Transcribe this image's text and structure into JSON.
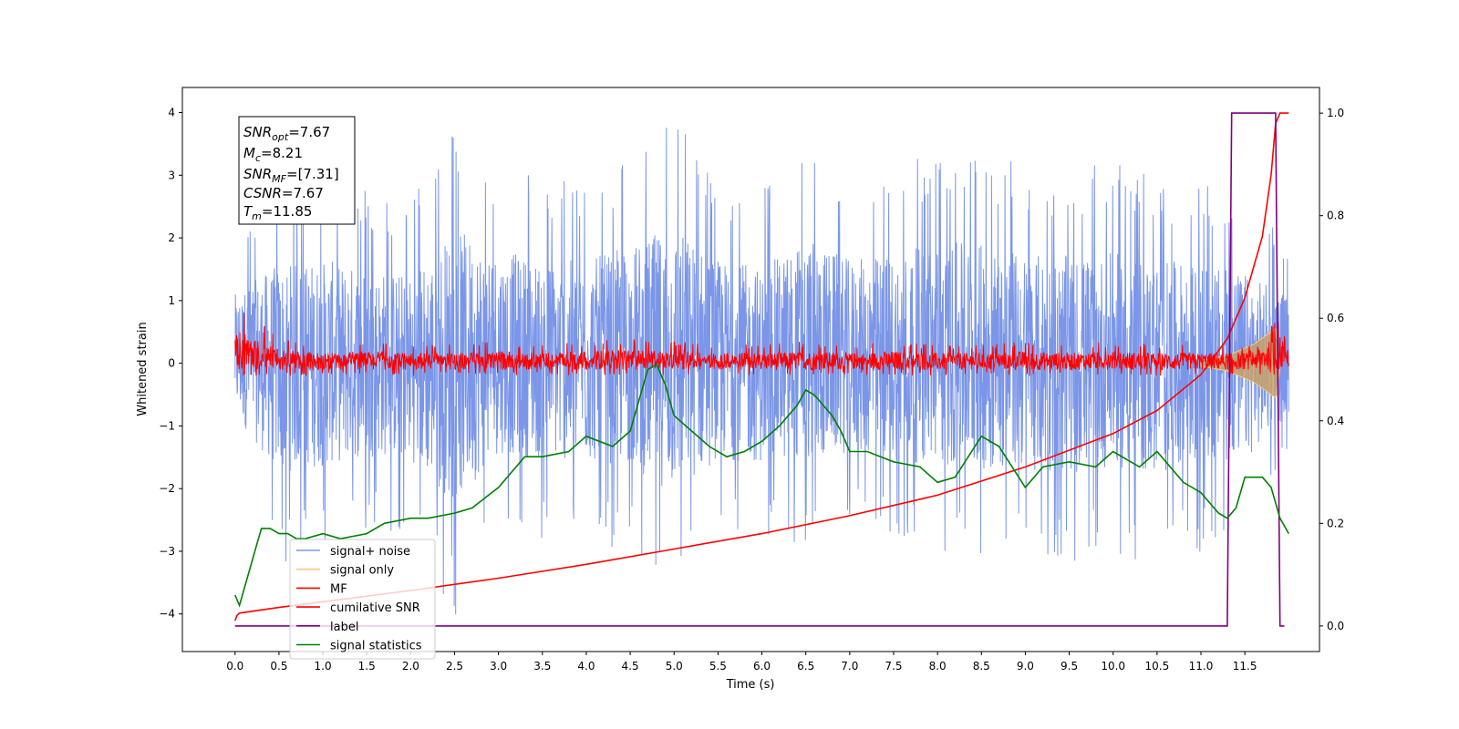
{
  "chart_data": {
    "type": "line",
    "xlabel": "Time (s)",
    "ylabel": "Whitened strain",
    "xlim": [
      -0.6,
      12.35
    ],
    "ylim": [
      -4.6,
      4.4
    ],
    "y2lim": [
      -0.05,
      1.05
    ],
    "grid": false,
    "x_ticks": [
      "0.0",
      "0.5",
      "1.0",
      "1.5",
      "2.0",
      "2.5",
      "3.0",
      "3.5",
      "4.0",
      "4.5",
      "5.0",
      "5.5",
      "6.0",
      "6.5",
      "7.0",
      "7.5",
      "8.0",
      "8.5",
      "9.0",
      "9.5",
      "10.0",
      "10.5",
      "11.0",
      "11.5"
    ],
    "y_ticks": [
      "−4",
      "−3",
      "−2",
      "−1",
      "0",
      "1",
      "2",
      "3",
      "4"
    ],
    "y2_ticks": [
      "0.0",
      "0.2",
      "0.4",
      "0.6",
      "0.8",
      "1.0"
    ],
    "legend_position": "lower-left",
    "annotation": {
      "snr_opt": {
        "label": "SNR",
        "sub": "opt",
        "value": "=7.67"
      },
      "mc": {
        "label": "M",
        "sub": "c",
        "value": "=8.21"
      },
      "snr_mf": {
        "label": "SNR",
        "sub": "MF",
        "value": "=[7.31]"
      },
      "csnr": {
        "label": "CSNR",
        "value": "=7.67"
      },
      "tm": {
        "label": "T",
        "sub": "m",
        "value": "=11.85"
      }
    },
    "series": [
      {
        "name": "signal+ noise",
        "color": "#7b96e8",
        "axis": "left",
        "style": "noise band",
        "envelope_x": [
          0.0,
          0.5,
          1.0,
          1.5,
          2.0,
          2.5,
          3.0,
          3.5,
          4.0,
          4.5,
          5.0,
          5.5,
          6.0,
          6.5,
          7.0,
          7.5,
          8.0,
          8.5,
          9.0,
          9.5,
          10.0,
          10.5,
          11.0,
          11.5,
          12.0
        ],
        "envelope_upper": [
          2.0,
          2.9,
          3.0,
          2.8,
          2.6,
          3.9,
          3.3,
          3.0,
          3.0,
          3.4,
          4.0,
          3.0,
          2.8,
          3.6,
          3.0,
          3.2,
          3.5,
          3.5,
          3.2,
          3.1,
          3.2,
          3.0,
          2.9,
          2.6,
          2.0
        ],
        "envelope_lower": [
          -1.5,
          -3.2,
          -3.0,
          -2.7,
          -2.8,
          -4.1,
          -2.6,
          -2.8,
          -2.9,
          -3.0,
          -3.8,
          -2.8,
          -2.9,
          -2.9,
          -2.6,
          -2.8,
          -3.0,
          -3.1,
          -3.1,
          -3.2,
          -3.0,
          -3.3,
          -3.0,
          -2.8,
          -1.5
        ]
      },
      {
        "name": "signal only",
        "color": "#f9c87a",
        "axis": "left",
        "style": "chirp envelope",
        "x": [
          11.0,
          11.3,
          11.6,
          11.75,
          11.85,
          11.9
        ],
        "upper": [
          0.05,
          0.12,
          0.3,
          0.45,
          0.55,
          0.1
        ],
        "lower": [
          -0.05,
          -0.12,
          -0.3,
          -0.45,
          -0.55,
          -0.1
        ]
      },
      {
        "name": "MF",
        "color": "#ff0000",
        "axis": "left",
        "style": "noise band",
        "envelope_x": [
          0.0,
          0.5,
          1.0,
          1.5,
          2.0,
          2.5,
          3.0,
          3.5,
          4.0,
          4.5,
          5.0,
          5.5,
          6.0,
          6.5,
          7.0,
          7.5,
          8.0,
          8.5,
          9.0,
          9.5,
          10.0,
          10.5,
          11.0,
          11.5,
          12.0
        ],
        "envelope_upper": [
          1.0,
          0.4,
          0.3,
          0.35,
          0.3,
          0.3,
          0.35,
          0.3,
          0.35,
          0.4,
          0.35,
          0.3,
          0.3,
          0.35,
          0.3,
          0.35,
          0.3,
          0.3,
          0.35,
          0.3,
          0.35,
          0.3,
          0.3,
          0.3,
          0.9
        ],
        "envelope_lower": [
          -0.2,
          -0.2,
          -0.2,
          -0.18,
          -0.2,
          -0.18,
          -0.2,
          -0.18,
          -0.2,
          -0.18,
          -0.2,
          -0.18,
          -0.2,
          -0.2,
          -0.18,
          -0.2,
          -0.2,
          -0.18,
          -0.2,
          -0.2,
          -0.18,
          -0.2,
          -0.2,
          -0.18,
          -0.2
        ]
      },
      {
        "name": "cumilative SNR",
        "color": "#ff0000",
        "axis": "right",
        "x": [
          0.0,
          0.02,
          0.05,
          0.5,
          1.0,
          2.0,
          3.0,
          4.0,
          5.0,
          6.0,
          7.0,
          8.0,
          9.0,
          10.0,
          10.5,
          11.0,
          11.3,
          11.5,
          11.7,
          11.8,
          11.85,
          11.9,
          12.0
        ],
        "y": [
          0.01,
          0.02,
          0.025,
          0.036,
          0.047,
          0.069,
          0.093,
          0.12,
          0.15,
          0.18,
          0.215,
          0.255,
          0.31,
          0.375,
          0.42,
          0.49,
          0.56,
          0.64,
          0.76,
          0.88,
          0.98,
          1.0,
          1.0
        ]
      },
      {
        "name": "label",
        "color": "#800080",
        "axis": "right",
        "x": [
          0.0,
          11.3,
          11.35,
          11.85,
          11.9,
          11.95
        ],
        "y": [
          0.0,
          0.0,
          1.0,
          1.0,
          0.0,
          0.0
        ]
      },
      {
        "name": "signal statistics",
        "color": "#008000",
        "axis": "right",
        "x": [
          0.0,
          0.05,
          0.15,
          0.25,
          0.3,
          0.4,
          0.5,
          0.6,
          0.7,
          0.8,
          1.0,
          1.2,
          1.5,
          1.7,
          2.0,
          2.2,
          2.5,
          2.7,
          3.0,
          3.3,
          3.5,
          3.8,
          4.0,
          4.3,
          4.5,
          4.6,
          4.7,
          4.8,
          4.9,
          5.0,
          5.2,
          5.4,
          5.6,
          5.8,
          6.0,
          6.2,
          6.4,
          6.5,
          6.6,
          6.7,
          6.8,
          6.9,
          7.0,
          7.2,
          7.5,
          7.8,
          8.0,
          8.2,
          8.5,
          8.7,
          9.0,
          9.2,
          9.5,
          9.8,
          10.0,
          10.3,
          10.5,
          10.8,
          11.0,
          11.2,
          11.3,
          11.4,
          11.5,
          11.6,
          11.7,
          11.8,
          11.9,
          12.0
        ],
        "y": [
          0.06,
          0.04,
          0.1,
          0.16,
          0.19,
          0.19,
          0.18,
          0.18,
          0.17,
          0.17,
          0.18,
          0.17,
          0.18,
          0.2,
          0.21,
          0.21,
          0.22,
          0.23,
          0.27,
          0.33,
          0.33,
          0.34,
          0.37,
          0.35,
          0.38,
          0.44,
          0.5,
          0.51,
          0.47,
          0.41,
          0.38,
          0.35,
          0.33,
          0.34,
          0.36,
          0.39,
          0.43,
          0.46,
          0.45,
          0.43,
          0.41,
          0.38,
          0.34,
          0.34,
          0.32,
          0.31,
          0.28,
          0.29,
          0.37,
          0.35,
          0.27,
          0.31,
          0.32,
          0.31,
          0.34,
          0.31,
          0.34,
          0.28,
          0.26,
          0.22,
          0.21,
          0.23,
          0.29,
          0.29,
          0.29,
          0.27,
          0.21,
          0.18
        ]
      }
    ]
  }
}
